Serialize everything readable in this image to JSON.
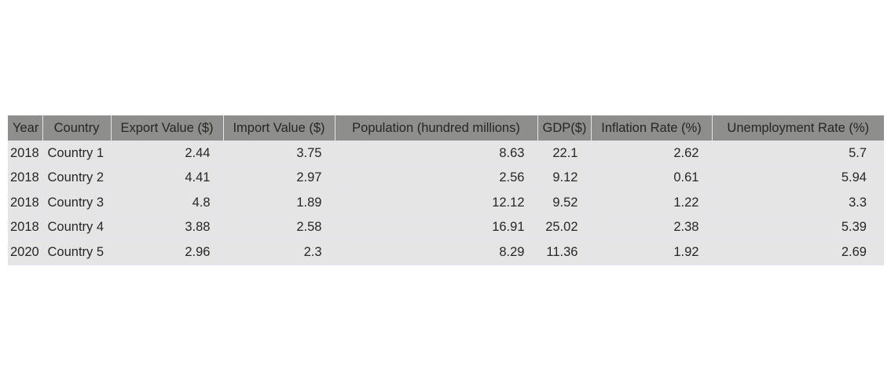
{
  "chart_data": {
    "type": "table",
    "columns": [
      "Year",
      "Country",
      "Export Value ($)",
      "Import Value ($)",
      "Population (hundred millions)",
      "GDP($)",
      "Inflation Rate (%)",
      "Unemployment Rate (%)"
    ],
    "rows": [
      [
        "2018",
        "Country 1",
        "2.44",
        "3.75",
        "8.63",
        "22.1",
        "2.62",
        "5.7"
      ],
      [
        "2018",
        "Country 2",
        "4.41",
        "2.97",
        "2.56",
        "9.12",
        "0.61",
        "5.94"
      ],
      [
        "2018",
        "Country 3",
        "4.8",
        "1.89",
        "12.12",
        "9.52",
        "1.22",
        "3.3"
      ],
      [
        "2018",
        "Country 4",
        "3.88",
        "2.58",
        "16.91",
        "25.02",
        "2.38",
        "5.39"
      ],
      [
        "2020",
        "Country 5",
        "2.96",
        "2.3",
        "8.29",
        "11.36",
        "1.92",
        "2.69"
      ]
    ]
  },
  "colors": {
    "header_background": "#8e8e8c",
    "cell_background": "#e5e5e5",
    "grid_lines": "#e4e4ee",
    "text": "#262626"
  }
}
